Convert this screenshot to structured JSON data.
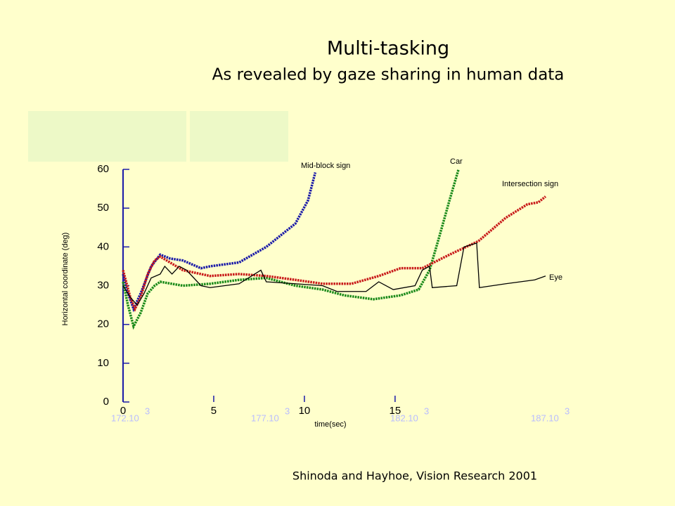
{
  "chart_data": {
    "type": "line",
    "title": "Multi-tasking",
    "subtitle": "As revealed by gaze sharing in human data",
    "caption": "Shinoda and Hayhoe, Vision Research 2001",
    "x_label": "time(sec)",
    "y_label": "Horizontal coordinate (deg)",
    "xlim": [
      0,
      24
    ],
    "xticks": [
      0,
      5,
      10,
      15
    ],
    "ylim": [
      0,
      60
    ],
    "yticks": [
      0,
      10,
      20,
      30,
      40,
      50,
      60
    ],
    "ghost_labels": [
      {
        "label": "172.10",
        "exp": "3"
      },
      {
        "label": "177.10",
        "exp": "3"
      },
      {
        "label": "182.10",
        "exp": "3"
      },
      {
        "label": "187.10",
        "exp": "3"
      }
    ],
    "series": [
      {
        "name": "Mid-block sign",
        "color": "#1a1aa8",
        "style": "dotted",
        "x": [
          0,
          0.2,
          0.58,
          0.97,
          1.55,
          2.05,
          2.6,
          3.3,
          4.3,
          4.8,
          6.4,
          7.9,
          9.5,
          10.2,
          10.6
        ],
        "values": [
          33,
          29,
          24,
          28,
          35,
          38,
          37,
          36.5,
          34.5,
          35,
          36,
          40,
          46,
          52,
          59.2
        ]
      },
      {
        "name": "Car",
        "color": "#1a8a1a",
        "style": "dotted",
        "x": [
          0,
          0.27,
          0.58,
          0.97,
          1.36,
          1.74,
          2.05,
          3.3,
          4.8,
          6.4,
          7.9,
          9.5,
          11,
          12.2,
          13.8,
          15.3,
          16.3,
          16.9,
          17.4,
          18,
          18.5
        ],
        "values": [
          31,
          25,
          19.5,
          23,
          28,
          30,
          31,
          30,
          30.5,
          31.5,
          32,
          30,
          29,
          27.5,
          26.5,
          27.5,
          29,
          34,
          42,
          52,
          60
        ]
      },
      {
        "name": "Intersection sign",
        "color": "#c81a1a",
        "style": "dotted",
        "x": [
          0,
          0.4,
          0.66,
          0.97,
          1.36,
          1.74,
          2.05,
          3.3,
          4.8,
          6.4,
          7.9,
          9.5,
          11,
          12.6,
          14.1,
          15.3,
          16.5,
          18,
          19.6,
          21.1,
          22.3,
          22.9,
          23.3
        ],
        "values": [
          34,
          27,
          24,
          27,
          33,
          36.5,
          37.5,
          34,
          32.5,
          33,
          32.5,
          31.5,
          30.5,
          30.5,
          32.5,
          34.5,
          34.5,
          38,
          41.5,
          47.5,
          51,
          51.5,
          53
        ]
      },
      {
        "name": "Eye",
        "color": "#000000",
        "style": "solid",
        "x": [
          0,
          0.4,
          0.78,
          1.16,
          1.55,
          2.05,
          2.3,
          2.7,
          3.1,
          3.5,
          4.3,
          4.8,
          6.4,
          7.6,
          7.9,
          9.5,
          11,
          11.8,
          12.6,
          13.4,
          14.1,
          14.9,
          16.1,
          16.5,
          16.9,
          17.05,
          18.4,
          18.8,
          19.5,
          19.65,
          21.1,
          22.7,
          23.3
        ],
        "values": [
          30,
          27,
          25,
          28,
          32,
          33,
          35,
          33,
          35,
          34,
          30,
          29.5,
          30.5,
          34,
          31,
          30.5,
          30,
          28.5,
          28.5,
          28.5,
          31,
          29,
          30,
          34,
          35,
          29.5,
          30,
          40,
          41,
          29.5,
          30.5,
          31.5,
          32.5
        ]
      }
    ]
  }
}
